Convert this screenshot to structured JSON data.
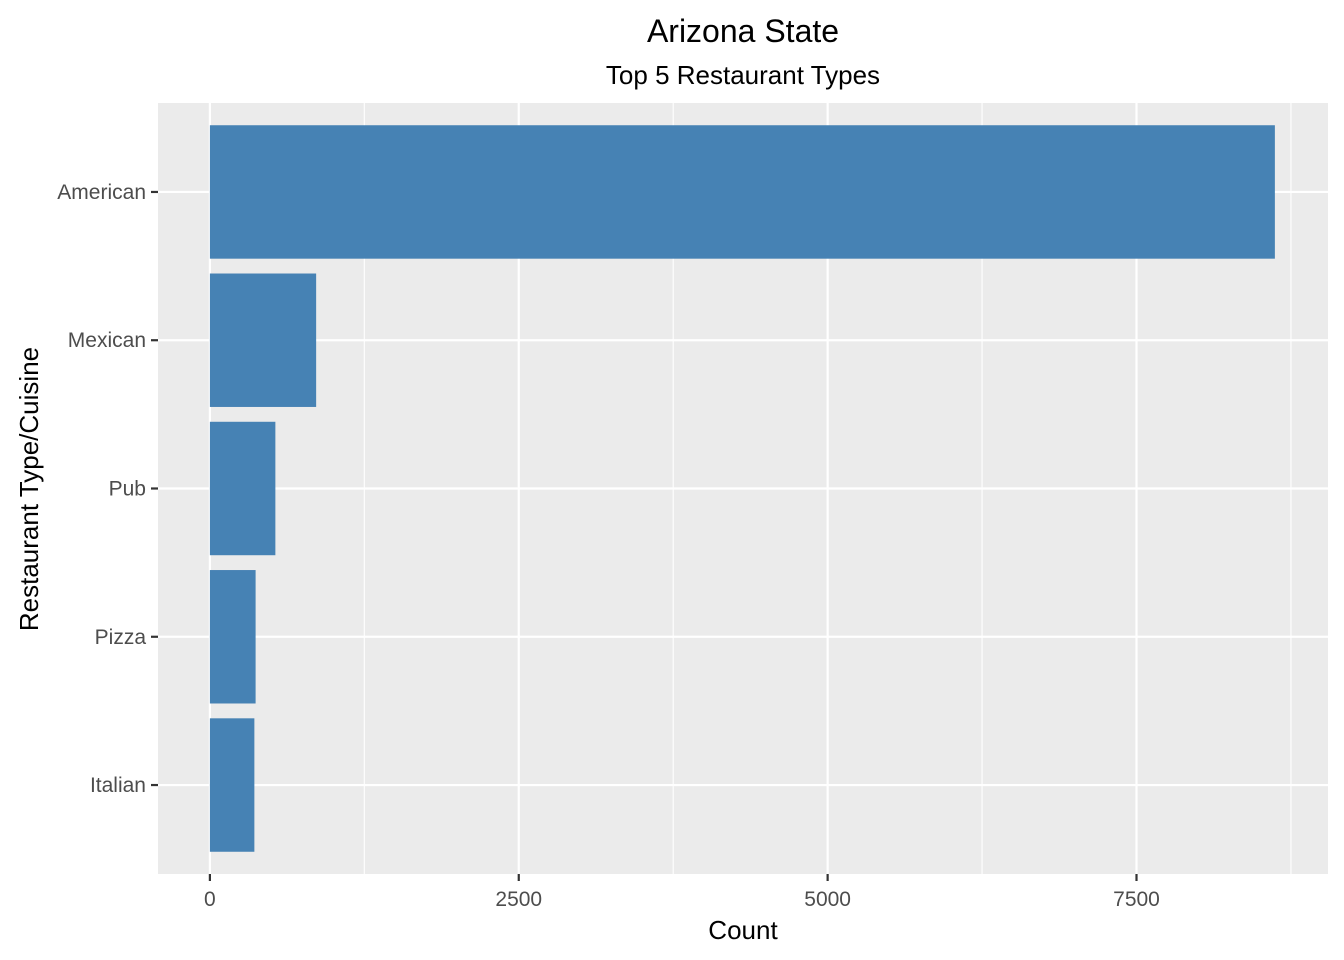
{
  "chart_data": {
    "type": "bar",
    "orientation": "horizontal",
    "title": "Arizona State",
    "subtitle": "Top 5 Restaurant Types",
    "xlabel": "Count",
    "ylabel": "Restaurant Type/Cuisine",
    "categories": [
      "American",
      "Mexican",
      "Pub",
      "Pizza",
      "Italian"
    ],
    "values": [
      8620,
      860,
      530,
      370,
      360
    ],
    "xlim": [
      -420,
      9050
    ],
    "x_ticks": [
      0,
      2500,
      5000,
      7500
    ],
    "x_tick_labels": [
      "0",
      "2500",
      "5000",
      "7500"
    ],
    "grid": true,
    "legend": "none",
    "colors": {
      "bar": "#4682B4",
      "panel_background": "#EBEBEB",
      "grid": "#FFFFFF",
      "tick_label": "#4D4D4D",
      "text": "#000000"
    }
  }
}
